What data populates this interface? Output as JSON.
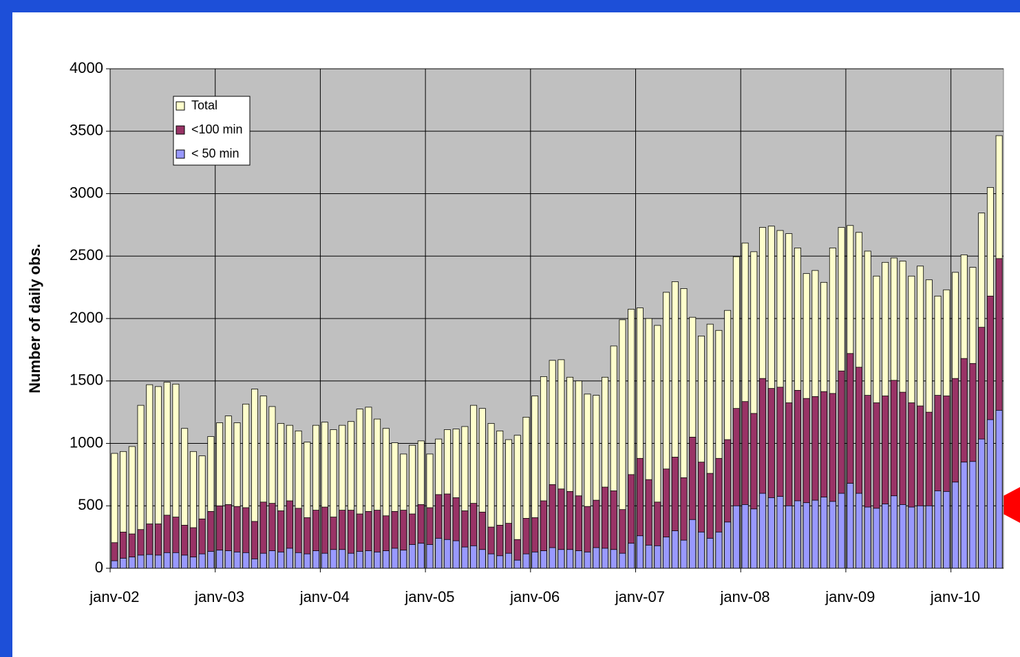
{
  "chart_data": {
    "type": "bar",
    "ylabel": "Number of daily obs.",
    "categories": [
      "janv-02",
      null,
      null,
      null,
      null,
      null,
      null,
      null,
      null,
      null,
      null,
      null,
      "janv-03",
      null,
      null,
      null,
      null,
      null,
      null,
      null,
      null,
      null,
      null,
      null,
      "janv-04",
      null,
      null,
      null,
      null,
      null,
      null,
      null,
      null,
      null,
      null,
      null,
      "janv-05",
      null,
      null,
      null,
      null,
      null,
      null,
      null,
      null,
      null,
      null,
      null,
      "janv-06",
      null,
      null,
      null,
      null,
      null,
      null,
      null,
      null,
      null,
      null,
      null,
      "janv-07",
      null,
      null,
      null,
      null,
      null,
      null,
      null,
      null,
      null,
      null,
      null,
      "janv-08",
      null,
      null,
      null,
      null,
      null,
      null,
      null,
      null,
      null,
      null,
      null,
      "janv-09",
      null,
      null,
      null,
      null,
      null,
      null,
      null,
      null,
      null,
      null,
      null,
      "janv-10",
      null,
      null,
      null,
      null,
      null
    ],
    "series": [
      {
        "name": "Total",
        "color": "#ffffcc",
        "values": [
          920,
          935,
          975,
          1305,
          1470,
          1455,
          1490,
          1475,
          1120,
          935,
          900,
          1055,
          1165,
          1220,
          1165,
          1315,
          1435,
          1380,
          1295,
          1160,
          1145,
          1100,
          1010,
          1145,
          1170,
          1110,
          1145,
          1175,
          1275,
          1290,
          1195,
          1120,
          1005,
          915,
          985,
          1020,
          915,
          1035,
          1110,
          1115,
          1135,
          1305,
          1280,
          1160,
          1100,
          1030,
          1065,
          1210,
          1380,
          1535,
          1665,
          1670,
          1530,
          1500,
          1395,
          1385,
          1530,
          1780,
          1990,
          2075,
          2085,
          2000,
          1945,
          2210,
          2295,
          2240,
          2010,
          1860,
          1955,
          1905,
          2065,
          2495,
          2605,
          2535,
          2730,
          2740,
          2705,
          2680,
          2565,
          2360,
          2385,
          2290,
          2565,
          2730,
          2745,
          2690,
          2540,
          2340,
          2450,
          2485,
          2460,
          2340,
          2420,
          2310,
          2180,
          2230,
          2370,
          2510,
          2410,
          2845,
          3050,
          3465
        ]
      },
      {
        "name": "<100 min",
        "color": "#993366",
        "values": [
          205,
          290,
          275,
          310,
          355,
          355,
          425,
          410,
          345,
          325,
          395,
          455,
          500,
          510,
          495,
          485,
          375,
          530,
          520,
          460,
          540,
          480,
          405,
          465,
          490,
          410,
          465,
          465,
          435,
          455,
          465,
          420,
          455,
          465,
          435,
          510,
          485,
          590,
          595,
          565,
          460,
          520,
          450,
          330,
          345,
          360,
          230,
          400,
          405,
          540,
          670,
          635,
          615,
          580,
          495,
          545,
          650,
          620,
          470,
          750,
          880,
          710,
          530,
          795,
          890,
          725,
          1050,
          850,
          760,
          880,
          1030,
          1280,
          1335,
          1240,
          1520,
          1440,
          1450,
          1325,
          1425,
          1360,
          1375,
          1415,
          1400,
          1580,
          1720,
          1610,
          1385,
          1325,
          1380,
          1505,
          1410,
          1325,
          1300,
          1250,
          1385,
          1380,
          1520,
          1680,
          1640,
          1930,
          2180,
          2480
        ]
      },
      {
        "name": "< 50 min",
        "color": "#9999ff",
        "values": [
          60,
          80,
          90,
          105,
          110,
          105,
          125,
          125,
          105,
          90,
          115,
          135,
          145,
          140,
          130,
          125,
          75,
          120,
          140,
          130,
          160,
          125,
          115,
          140,
          120,
          150,
          150,
          120,
          135,
          140,
          130,
          140,
          160,
          145,
          190,
          200,
          190,
          240,
          230,
          220,
          170,
          180,
          150,
          115,
          100,
          120,
          65,
          115,
          130,
          140,
          165,
          150,
          150,
          140,
          130,
          165,
          160,
          150,
          120,
          200,
          260,
          185,
          180,
          250,
          300,
          225,
          390,
          290,
          240,
          290,
          370,
          500,
          510,
          475,
          600,
          565,
          575,
          500,
          540,
          525,
          545,
          570,
          535,
          600,
          680,
          600,
          490,
          480,
          515,
          580,
          510,
          490,
          500,
          500,
          620,
          615,
          690,
          850,
          855,
          1035,
          1190,
          1265
        ]
      }
    ],
    "ylim": [
      0,
      4000
    ],
    "yticks": [
      0,
      500,
      1000,
      1500,
      2000,
      2500,
      3000,
      3500,
      4000
    ],
    "grid": true,
    "legend": "upper left"
  }
}
